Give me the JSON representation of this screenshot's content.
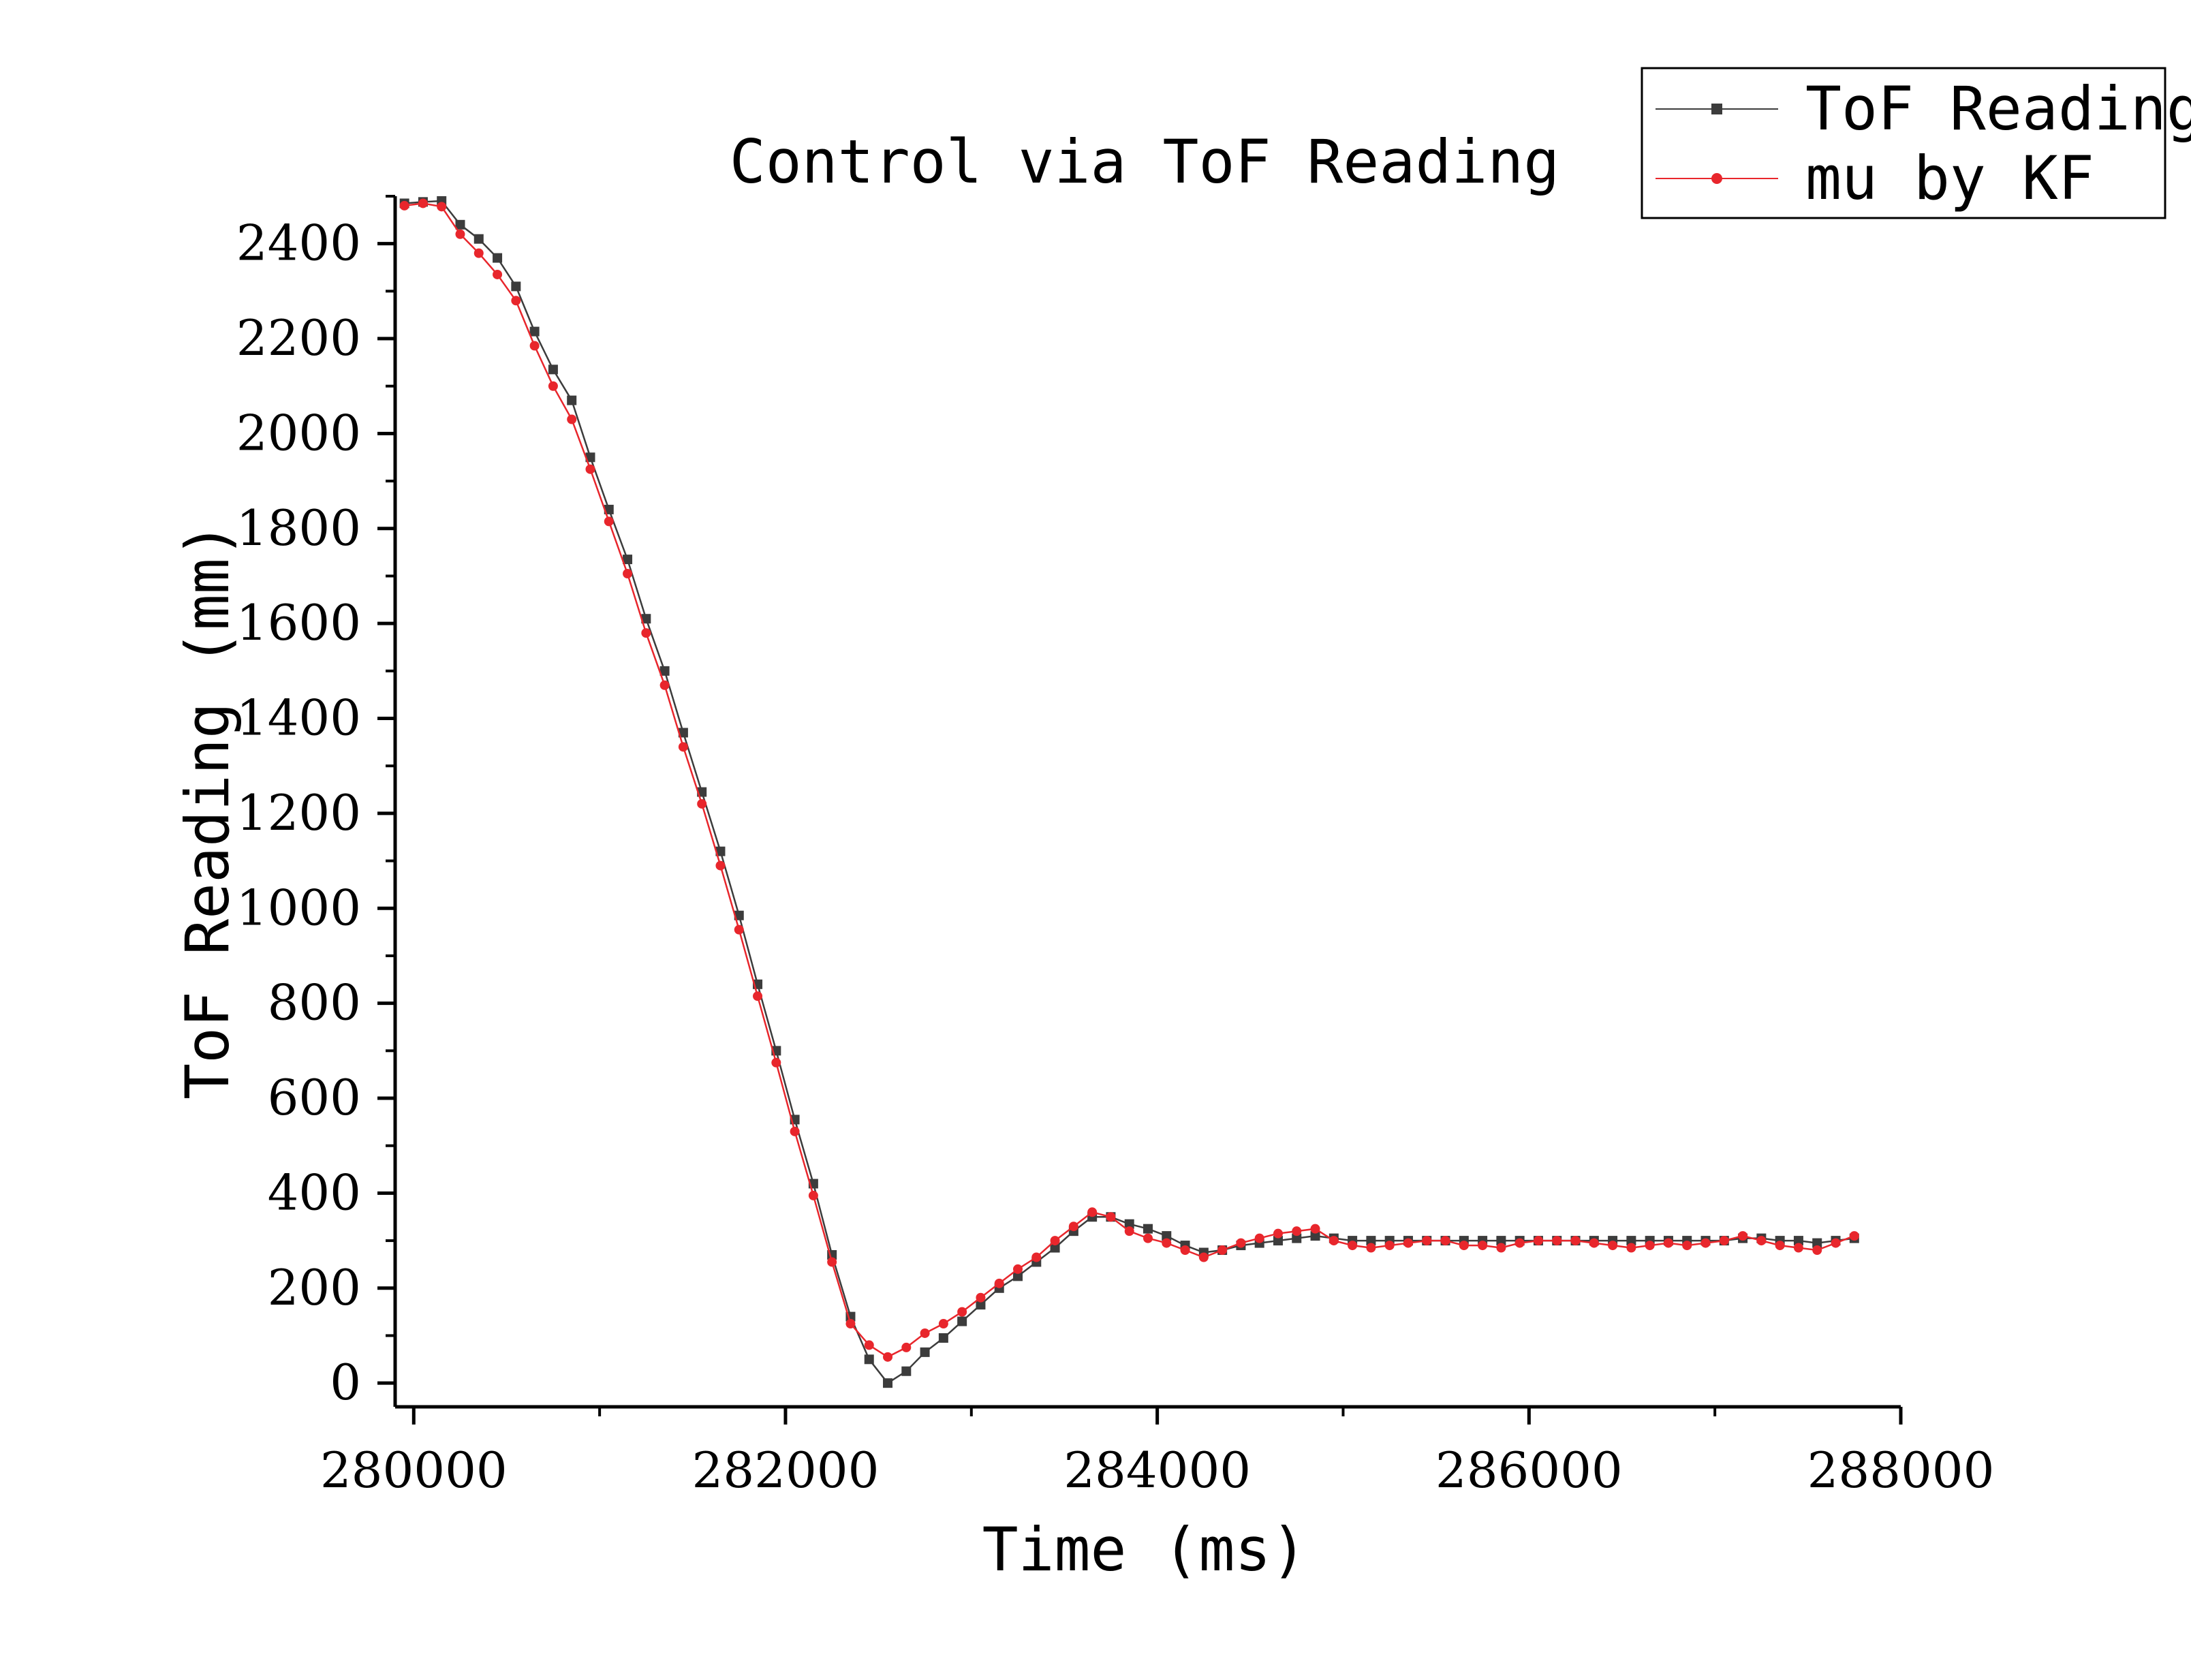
{
  "chart_data": {
    "type": "line",
    "title": "Control via ToF Reading",
    "xlabel": "Time (ms)",
    "ylabel": "ToF Reading (mm)",
    "xlim": [
      279900,
      288000
    ],
    "ylim": [
      -50,
      2500
    ],
    "x_ticks": [
      280000,
      282000,
      284000,
      286000,
      288000
    ],
    "y_ticks": [
      0,
      200,
      400,
      600,
      800,
      1000,
      1200,
      1400,
      1600,
      1800,
      2000,
      2200,
      2400
    ],
    "grid": false,
    "legend_position": "top-right",
    "x": [
      279950,
      280050,
      280150,
      280250,
      280350,
      280450,
      280550,
      280650,
      280750,
      280850,
      280950,
      281050,
      281150,
      281250,
      281350,
      281450,
      281550,
      281650,
      281750,
      281850,
      281950,
      282050,
      282150,
      282250,
      282350,
      282450,
      282550,
      282650,
      282750,
      282850,
      282950,
      283050,
      283150,
      283250,
      283350,
      283450,
      283550,
      283650,
      283750,
      283850,
      283950,
      284050,
      284150,
      284250,
      284350,
      284450,
      284550,
      284650,
      284750,
      284850,
      284950,
      285050,
      285150,
      285250,
      285350,
      285450,
      285550,
      285650,
      285750,
      285850,
      285950,
      286050,
      286150,
      286250,
      286350,
      286450,
      286550,
      286650,
      286750,
      286850,
      286950,
      287050,
      287150,
      287250,
      287350,
      287450,
      287550,
      287650,
      287750
    ],
    "series": [
      {
        "name": "ToF Reading",
        "color": "#3c3c3c",
        "marker": "square",
        "values": [
          2485,
          2488,
          2490,
          2440,
          2410,
          2370,
          2310,
          2215,
          2135,
          2070,
          1950,
          1840,
          1735,
          1610,
          1500,
          1370,
          1245,
          1120,
          985,
          840,
          700,
          555,
          420,
          270,
          140,
          50,
          0,
          25,
          65,
          95,
          130,
          165,
          200,
          225,
          255,
          285,
          320,
          350,
          350,
          335,
          325,
          310,
          290,
          275,
          280,
          290,
          295,
          300,
          305,
          310,
          305,
          300,
          300,
          300,
          300,
          300,
          300,
          300,
          300,
          300,
          300,
          300,
          300,
          300,
          300,
          300,
          300,
          300,
          300,
          300,
          300,
          300,
          305,
          305,
          300,
          300,
          295,
          300,
          305
        ]
      },
      {
        "name": "mu by KF",
        "color": "#e8262c",
        "marker": "circle",
        "values": [
          2480,
          2485,
          2478,
          2420,
          2380,
          2335,
          2280,
          2185,
          2100,
          2030,
          1925,
          1815,
          1705,
          1580,
          1470,
          1340,
          1220,
          1090,
          955,
          815,
          675,
          530,
          395,
          255,
          125,
          80,
          55,
          75,
          105,
          125,
          150,
          180,
          210,
          240,
          265,
          300,
          330,
          360,
          350,
          320,
          305,
          295,
          280,
          265,
          280,
          295,
          305,
          315,
          320,
          325,
          300,
          290,
          285,
          290,
          295,
          300,
          300,
          290,
          290,
          285,
          295,
          300,
          300,
          300,
          295,
          290,
          285,
          290,
          295,
          290,
          295,
          300,
          310,
          300,
          290,
          285,
          280,
          295,
          310
        ]
      }
    ]
  }
}
